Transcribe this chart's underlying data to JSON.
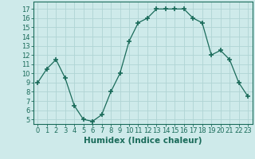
{
  "x": [
    0,
    1,
    2,
    3,
    4,
    5,
    6,
    7,
    8,
    9,
    10,
    11,
    12,
    13,
    14,
    15,
    16,
    17,
    18,
    19,
    20,
    21,
    22,
    23
  ],
  "y": [
    9,
    10.5,
    11.5,
    9.5,
    6.5,
    5,
    4.8,
    5.5,
    8,
    10,
    13.5,
    15.5,
    16,
    17,
    17,
    17,
    17,
    16,
    15.5,
    12,
    12.5,
    11.5,
    9,
    7.5
  ],
  "line_color": "#1a6b5a",
  "marker": "+",
  "marker_size": 4,
  "bg_color": "#ceeaea",
  "grid_color": "#b0d4d4",
  "xlabel": "Humidex (Indice chaleur)",
  "ylim": [
    4.5,
    17.8
  ],
  "xlim": [
    -0.5,
    23.5
  ],
  "yticks": [
    5,
    6,
    7,
    8,
    9,
    10,
    11,
    12,
    13,
    14,
    15,
    16,
    17
  ],
  "xticks": [
    0,
    1,
    2,
    3,
    4,
    5,
    6,
    7,
    8,
    9,
    10,
    11,
    12,
    13,
    14,
    15,
    16,
    17,
    18,
    19,
    20,
    21,
    22,
    23
  ],
  "tick_fontsize": 6,
  "xlabel_fontsize": 7.5,
  "spine_color": "#1a6b5a",
  "tick_color": "#1a6b5a"
}
